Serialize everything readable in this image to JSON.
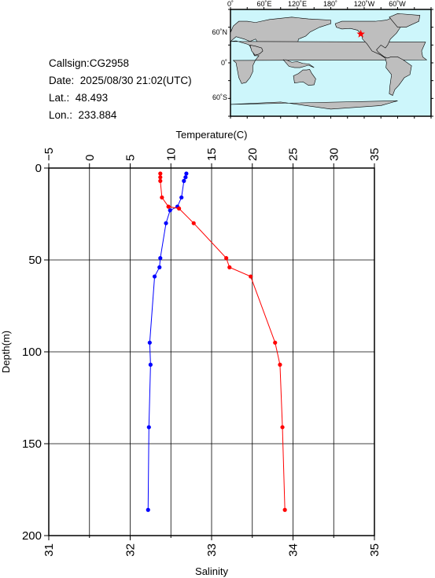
{
  "info": {
    "callsign_label": "Callsign:",
    "callsign": "CG2958",
    "date_label": "Date:",
    "date": "2025/08/30 21:02(UTC)",
    "lat_label": "Lat.:",
    "lat": "48.493",
    "lon_label": "Lon.:",
    "lon": "233.884"
  },
  "map": {
    "top_ticks": [
      "0˚",
      "60˚E",
      "120˚E",
      "180˚",
      "120˚W",
      "60˚W"
    ],
    "left_ticks": [
      "60˚N",
      "0˚",
      "60˚S"
    ],
    "colors": {
      "ocean": "#cdf6fb",
      "land": "#bebebe",
      "marker": "#ff0000"
    },
    "marker_lon": 233.884,
    "marker_lat": 48.493
  },
  "chart_data": {
    "type": "line",
    "ylabel": "Depth(m)",
    "top_xlabel": "Temperature(C)",
    "bottom_xlabel": "Salinity",
    "ylim": [
      200,
      0
    ],
    "yticks": [
      "0",
      "50",
      "100",
      "150",
      "200"
    ],
    "temperature_axis": {
      "range": [
        -5,
        35
      ],
      "ticks": [
        "−5",
        "0",
        "5",
        "10",
        "15",
        "20",
        "25",
        "30",
        "35"
      ]
    },
    "salinity_axis": {
      "range": [
        31,
        35
      ],
      "ticks": [
        "31",
        "32",
        "33",
        "34",
        "35"
      ]
    },
    "grid": true,
    "series": [
      {
        "quantity": "temperature",
        "axis": "top",
        "color": "#ff0000",
        "points": [
          {
            "x": 8.7,
            "y": 3
          },
          {
            "x": 8.7,
            "y": 5
          },
          {
            "x": 8.7,
            "y": 7
          },
          {
            "x": 8.9,
            "y": 16
          },
          {
            "x": 9.7,
            "y": 21
          },
          {
            "x": 11.0,
            "y": 22
          },
          {
            "x": 12.8,
            "y": 30
          },
          {
            "x": 16.8,
            "y": 49
          },
          {
            "x": 17.2,
            "y": 54
          },
          {
            "x": 19.8,
            "y": 59
          },
          {
            "x": 22.8,
            "y": 95
          },
          {
            "x": 23.4,
            "y": 107
          },
          {
            "x": 23.7,
            "y": 141
          },
          {
            "x": 24.0,
            "y": 186
          }
        ]
      },
      {
        "quantity": "salinity",
        "axis": "bottom",
        "color": "#0000ff",
        "points": [
          {
            "x": 32.69,
            "y": 3
          },
          {
            "x": 32.68,
            "y": 5
          },
          {
            "x": 32.66,
            "y": 7
          },
          {
            "x": 32.63,
            "y": 16
          },
          {
            "x": 32.58,
            "y": 21
          },
          {
            "x": 32.49,
            "y": 23
          },
          {
            "x": 32.44,
            "y": 30
          },
          {
            "x": 32.37,
            "y": 49
          },
          {
            "x": 32.36,
            "y": 54
          },
          {
            "x": 32.3,
            "y": 59
          },
          {
            "x": 32.24,
            "y": 95
          },
          {
            "x": 32.25,
            "y": 107
          },
          {
            "x": 32.23,
            "y": 141
          },
          {
            "x": 32.22,
            "y": 186
          }
        ]
      }
    ]
  }
}
